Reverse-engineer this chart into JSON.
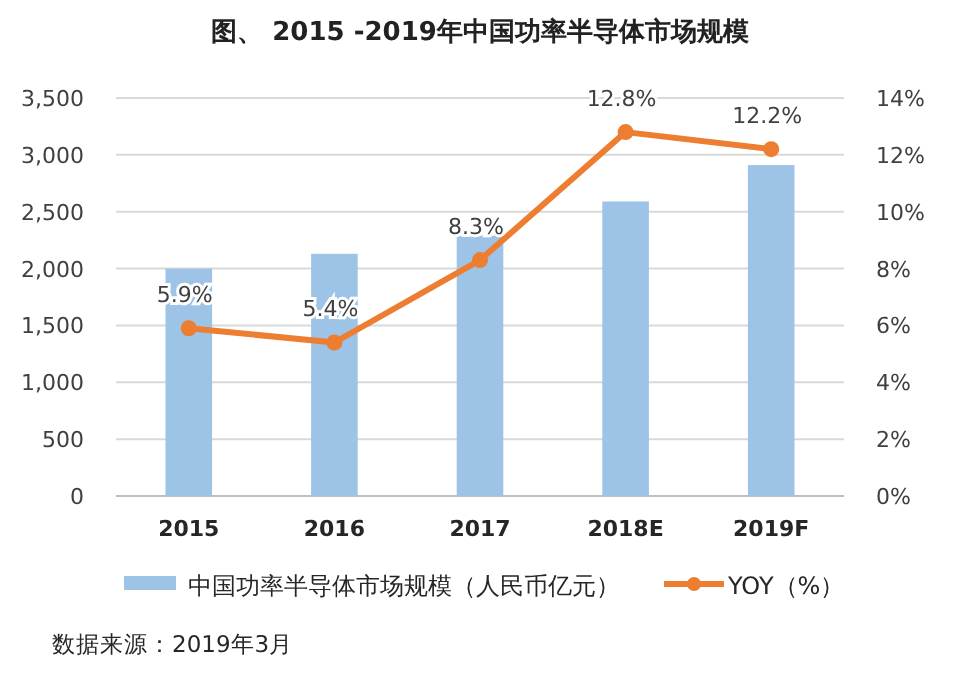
{
  "chart_data": {
    "type": "bar",
    "title": "图、 2015 -2019年中国功率半导体市场规模",
    "categories": [
      "2015",
      "2016",
      "2017",
      "2018E",
      "2019F"
    ],
    "series": [
      {
        "name": "中国功率半导体市场规模（人民币亿元）",
        "color": "#9dc3e6",
        "values": [
          2000,
          2130,
          2290,
          2590,
          2910
        ]
      },
      {
        "name": "YOY（%）",
        "type": "line",
        "axis": "y2",
        "color": "#ed7d31",
        "marker": "circle",
        "values": [
          5.9,
          5.4,
          8.3,
          12.8,
          12.2
        ],
        "value_labels": [
          "5.9%",
          "5.4%",
          "8.3%",
          "12.8%",
          "12.2%"
        ]
      }
    ],
    "ylim": [
      0,
      3500
    ],
    "yticks": [
      {
        "value": 0,
        "label": "0"
      },
      {
        "value": 500,
        "label": "500"
      },
      {
        "value": 1000,
        "label": "1,000"
      },
      {
        "value": 1500,
        "label": "1,500"
      },
      {
        "value": 2000,
        "label": "2,000"
      },
      {
        "value": 2500,
        "label": "2,500"
      },
      {
        "value": 3000,
        "label": "3,000"
      },
      {
        "value": 3500,
        "label": "3,500"
      }
    ],
    "y2lim": [
      0,
      14
    ],
    "y2ticks": [
      {
        "value": 0,
        "label": "0%"
      },
      {
        "value": 2,
        "label": "2%"
      },
      {
        "value": 4,
        "label": "4%"
      },
      {
        "value": 6,
        "label": "6%"
      },
      {
        "value": 8,
        "label": "8%"
      },
      {
        "value": 10,
        "label": "10%"
      },
      {
        "value": 12,
        "label": "12%"
      },
      {
        "value": 14,
        "label": "14%"
      }
    ],
    "grid": "y",
    "legend": "bottom",
    "annotations": [
      "数据来源：2019年3月"
    ]
  }
}
